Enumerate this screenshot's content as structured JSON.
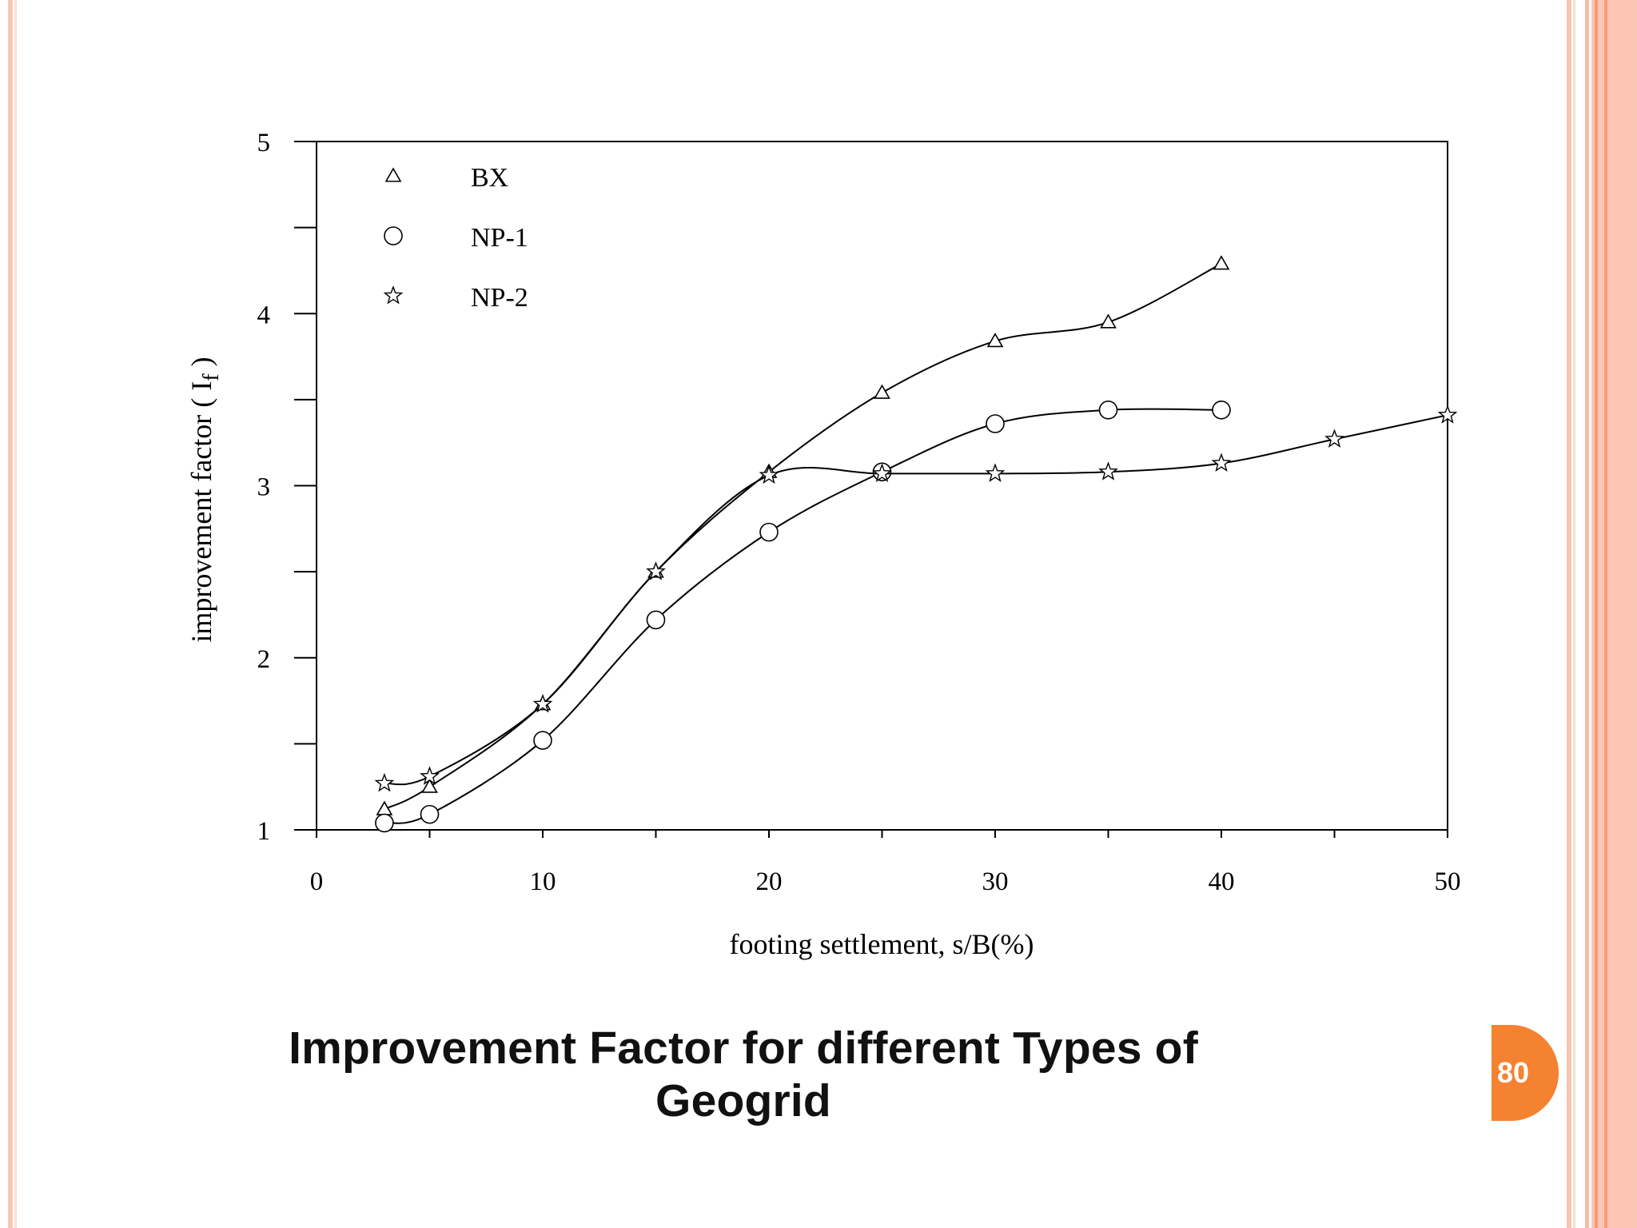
{
  "slide": {
    "caption": "Improvement Factor for different Types of Geogrid",
    "page_number": "80",
    "accent_color": "#f58231",
    "border_color": "#f7c0aa"
  },
  "chart_data": {
    "type": "line",
    "title": "",
    "xlabel": "footing settlement, s/B(%)",
    "ylabel": "improvement  factor ( I",
    "ylabel_subscript": "f",
    "ylabel_close": " )",
    "xlim": [
      0,
      50
    ],
    "ylim": [
      1,
      5
    ],
    "x_ticks": [
      0,
      10,
      20,
      30,
      40,
      50
    ],
    "y_ticks": [
      1,
      2,
      3,
      4,
      5
    ],
    "x_tick_labels": [
      "0",
      "10",
      "20",
      "30",
      "40",
      "50"
    ],
    "y_tick_labels": [
      "1",
      "2",
      "3",
      "4",
      "5"
    ],
    "x_minor_step": 5,
    "y_minor_step": 0.5,
    "grid": false,
    "legend_position": "top-left",
    "series": [
      {
        "name": "BX",
        "marker": "triangle",
        "x": [
          3,
          5,
          10,
          15,
          20,
          25,
          30,
          35,
          40
        ],
        "y": [
          1.12,
          1.25,
          1.73,
          2.5,
          3.08,
          3.54,
          3.84,
          3.95,
          4.29
        ]
      },
      {
        "name": "NP-1",
        "marker": "circle",
        "x": [
          3,
          5,
          10,
          15,
          20,
          25,
          30,
          35,
          40
        ],
        "y": [
          1.04,
          1.09,
          1.52,
          2.22,
          2.73,
          3.08,
          3.36,
          3.44,
          3.44
        ]
      },
      {
        "name": "NP-2",
        "marker": "star",
        "x": [
          3,
          5,
          10,
          15,
          20,
          25,
          30,
          35,
          40,
          45,
          50
        ],
        "y": [
          1.27,
          1.31,
          1.73,
          2.5,
          3.06,
          3.07,
          3.07,
          3.08,
          3.13,
          3.27,
          3.41
        ]
      }
    ]
  }
}
